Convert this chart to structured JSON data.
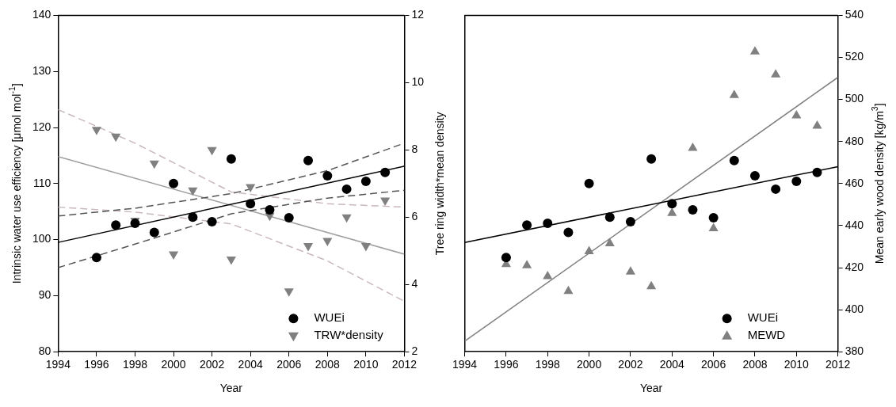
{
  "chart_data": [
    {
      "type": "scatter",
      "xlabel": "Year",
      "ylabel": "Intrinsic water use efficiency [μmol mol$^{-1}$]",
      "y2label": "Tree ring width*mean density",
      "x": [
        1996,
        1997,
        1998,
        1999,
        2000,
        2001,
        2002,
        2003,
        2004,
        2005,
        2006,
        2007,
        2008,
        2009,
        2010,
        2011
      ],
      "xlim": [
        1994,
        2012
      ],
      "xticks": [
        1994,
        1996,
        1998,
        2000,
        2002,
        2004,
        2006,
        2008,
        2010,
        2012
      ],
      "ylim": [
        80,
        140
      ],
      "yticks": [
        80,
        90,
        100,
        110,
        120,
        130,
        140
      ],
      "y2lim": [
        2,
        12
      ],
      "y2ticks": [
        2,
        4,
        6,
        8,
        10,
        12
      ],
      "grid": false,
      "legend": "bottom right",
      "series": [
        {
          "name": "WUEi",
          "color": "#000000",
          "marker": "circle",
          "values": [
            96.8,
            102.6,
            102.9,
            101.3,
            110.0,
            104.0,
            103.2,
            114.4,
            106.4,
            105.3,
            103.9,
            114.1,
            111.4,
            109.0,
            110.4,
            112.0
          ]
        },
        {
          "name": "TRW*density",
          "color": "#808080",
          "marker": "triangle_down",
          "axis": "y2",
          "values": [
            8.6,
            8.4,
            5.9,
            7.6,
            4.9,
            6.8,
            8.0,
            4.75,
            6.9,
            6.05,
            3.8,
            5.15,
            5.3,
            6.0,
            5.15,
            6.5
          ]
        },
        {
          "type": "line",
          "color": "#000000",
          "line_style": "solid",
          "x": [
            1994,
            2012
          ],
          "values": [
            99.5,
            113.1
          ]
        },
        {
          "type": "line",
          "color": "#555555",
          "line_style": "dashed",
          "x": [
            1994,
            1998,
            2003,
            2008,
            2012
          ],
          "values": [
            104.2,
            105.6,
            108.2,
            112.3,
            117.2
          ]
        },
        {
          "type": "line",
          "color": "#555555",
          "line_style": "dashed",
          "x": [
            1994,
            1998,
            2003,
            2008,
            2012
          ],
          "values": [
            95.0,
            99.2,
            104.6,
            107.4,
            108.8
          ]
        },
        {
          "type": "line",
          "color": "#a0a0a0",
          "line_style": "solid",
          "axis": "y2",
          "x": [
            1994,
            2012
          ],
          "values": [
            7.8,
            4.9
          ]
        },
        {
          "type": "line",
          "color": "#c8b8bc",
          "line_style": "dashed",
          "axis": "y2",
          "x": [
            1994,
            1998,
            2003,
            2008,
            2012
          ],
          "values": [
            9.2,
            8.2,
            6.75,
            6.4,
            6.3
          ]
        },
        {
          "type": "line",
          "color": "#c8b8bc",
          "line_style": "dashed",
          "axis": "y2",
          "x": [
            1994,
            1998,
            2003,
            2008,
            2012
          ],
          "values": [
            6.3,
            6.15,
            5.8,
            4.7,
            3.5
          ]
        }
      ]
    },
    {
      "type": "scatter",
      "xlabel": "Year",
      "y2label": "Mean early wood density [kg/m$^{3}$]",
      "x": [
        1996,
        1997,
        1998,
        1999,
        2000,
        2001,
        2002,
        2003,
        2004,
        2005,
        2006,
        2007,
        2008,
        2009,
        2010,
        2011
      ],
      "xlim": [
        1994,
        2012
      ],
      "xticks": [
        1994,
        1996,
        1998,
        2000,
        2002,
        2004,
        2006,
        2008,
        2010,
        2012
      ],
      "ylim": [
        80,
        140
      ],
      "y2lim": [
        380,
        540
      ],
      "y2ticks": [
        380,
        400,
        420,
        440,
        460,
        480,
        500,
        520,
        540
      ],
      "grid": false,
      "legend": "bottom right",
      "series": [
        {
          "name": "WUEi",
          "color": "#000000",
          "marker": "circle",
          "values": [
            96.8,
            102.6,
            102.9,
            101.3,
            110.0,
            104.0,
            103.2,
            114.4,
            106.4,
            105.3,
            103.9,
            114.1,
            111.4,
            109.0,
            110.4,
            112.0
          ]
        },
        {
          "name": "MEWD",
          "color": "#808080",
          "marker": "triangle",
          "axis": "y2",
          "values": [
            421.6,
            421.0,
            415.9,
            408.8,
            427.7,
            431.5,
            418.0,
            411.1,
            445.9,
            476.9,
            438.6,
            502.0,
            522.7,
            511.8,
            492.3,
            487.4
          ]
        },
        {
          "type": "line",
          "color": "#000000",
          "line_style": "solid",
          "x": [
            1994,
            2012
          ],
          "values": [
            99.5,
            113.0
          ]
        },
        {
          "type": "line",
          "color": "#808080",
          "line_style": "solid",
          "axis": "y2",
          "x": [
            1994,
            2012
          ],
          "values": [
            385,
            510.5
          ]
        }
      ]
    }
  ]
}
